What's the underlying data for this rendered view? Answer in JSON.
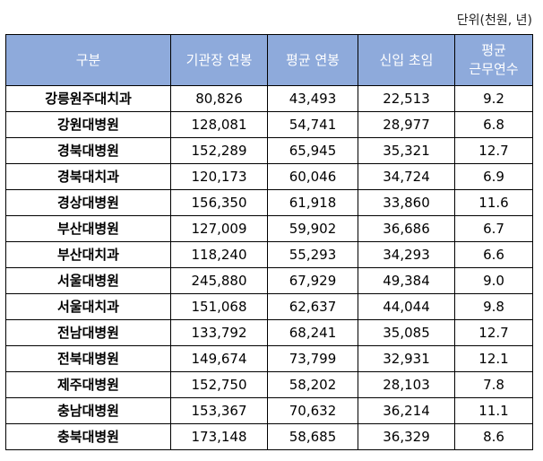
{
  "unit_label": "단위(천원, 년)",
  "header": {
    "col1": "구분",
    "col2": "기관장 연봉",
    "col3": "평균 연봉",
    "col4": "신입 초임",
    "col5_line1": "평균",
    "col5_line2": "근무연수"
  },
  "rows": [
    {
      "name": "강릉원주대치과",
      "head_salary": "80,826",
      "avg_salary": "43,493",
      "entry_salary": "22,513",
      "avg_years": "9.2"
    },
    {
      "name": "강원대병원",
      "head_salary": "128,081",
      "avg_salary": "54,741",
      "entry_salary": "28,977",
      "avg_years": "6.8"
    },
    {
      "name": "경북대병원",
      "head_salary": "152,289",
      "avg_salary": "65,945",
      "entry_salary": "35,321",
      "avg_years": "12.7"
    },
    {
      "name": "경북대치과",
      "head_salary": "120,173",
      "avg_salary": "60,046",
      "entry_salary": "34,724",
      "avg_years": "6.9"
    },
    {
      "name": "경상대병원",
      "head_salary": "156,350",
      "avg_salary": "61,918",
      "entry_salary": "33,860",
      "avg_years": "11.6"
    },
    {
      "name": "부산대병원",
      "head_salary": "127,009",
      "avg_salary": "59,902",
      "entry_salary": "36,686",
      "avg_years": "6.7"
    },
    {
      "name": "부산대치과",
      "head_salary": "118,240",
      "avg_salary": "55,293",
      "entry_salary": "34,293",
      "avg_years": "6.6"
    },
    {
      "name": "서울대병원",
      "head_salary": "245,880",
      "avg_salary": "67,929",
      "entry_salary": "49,384",
      "avg_years": "9.0"
    },
    {
      "name": "서울대치과",
      "head_salary": "151,068",
      "avg_salary": "62,637",
      "entry_salary": "44,044",
      "avg_years": "9.8"
    },
    {
      "name": "전남대병원",
      "head_salary": "133,792",
      "avg_salary": "68,241",
      "entry_salary": "35,085",
      "avg_years": "12.7"
    },
    {
      "name": "전북대병원",
      "head_salary": "149,674",
      "avg_salary": "73,799",
      "entry_salary": "32,931",
      "avg_years": "12.1"
    },
    {
      "name": "제주대병원",
      "head_salary": "152,750",
      "avg_salary": "58,202",
      "entry_salary": "28,103",
      "avg_years": "7.8"
    },
    {
      "name": "충남대병원",
      "head_salary": "153,367",
      "avg_salary": "70,632",
      "entry_salary": "36,214",
      "avg_years": "11.1"
    },
    {
      "name": "충북대병원",
      "head_salary": "173,148",
      "avg_salary": "58,685",
      "entry_salary": "36,329",
      "avg_years": "8.6"
    }
  ]
}
